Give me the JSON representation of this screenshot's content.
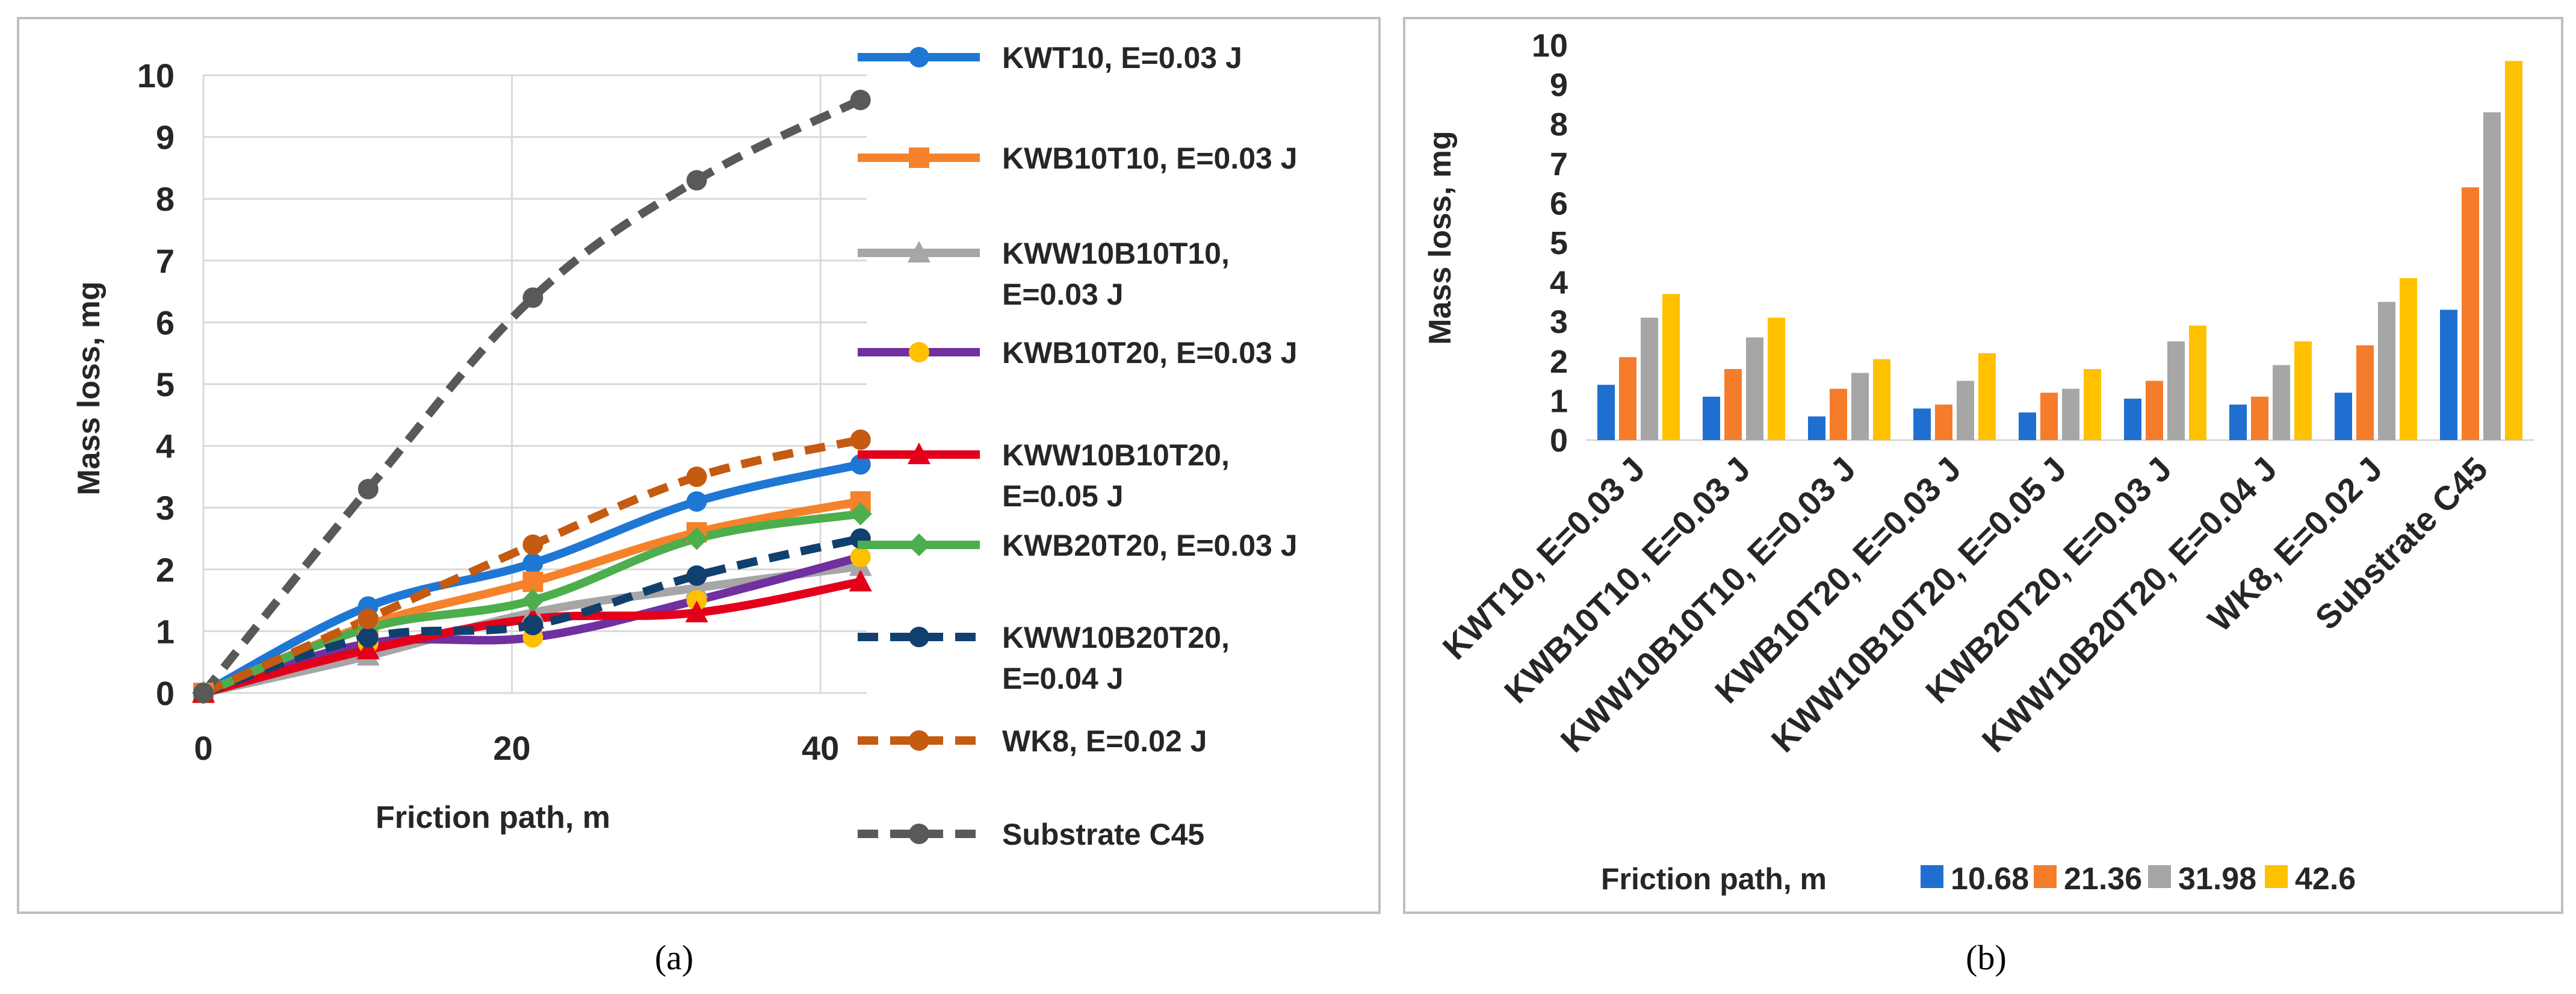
{
  "colors": {
    "KWT10": "#1f77d4",
    "KWB10T10": "#f5822a",
    "KWW10B10T10": "#a6a6a6",
    "KWB10T20": "#7030a0",
    "KWW10B10T20": "#e3001b",
    "KWB20T20": "#4cae4c",
    "KWW10B20T20": "#12406e",
    "WK8": "#c55a11",
    "C45": "#595959",
    "bar10": "#1f6fd1",
    "bar21": "#f57c2b",
    "bar31": "#a6a6a6",
    "bar42": "#ffc000",
    "yellowMarker": "#ffc000",
    "grid": "#d9d9d9",
    "frame": "#bfbfbf"
  },
  "chart_data": [
    {
      "panel": "(a)",
      "type": "line",
      "xlabel": "Friction path, m",
      "ylabel": "Mass loss, mg",
      "xlim": [
        0,
        43
      ],
      "ylim": [
        0,
        10
      ],
      "xticks": [
        "0",
        "20",
        "40"
      ],
      "xtick_values": [
        0,
        20,
        40
      ],
      "yticks": [
        "0",
        "1",
        "2",
        "3",
        "4",
        "5",
        "6",
        "7",
        "8",
        "9",
        "10"
      ],
      "x": [
        0,
        10.68,
        21.36,
        31.98,
        42.6
      ],
      "series": [
        {
          "name": "KWT10, E=0.03 J",
          "legend_lines": [
            "KWT10, E=0.03 J"
          ],
          "color_key": "KWT10",
          "marker": "circle",
          "dash": false,
          "values": [
            0,
            1.4,
            2.1,
            3.1,
            3.7
          ]
        },
        {
          "name": "KWB10T10, E=0.03 J",
          "legend_lines": [
            "KWB10T10, E=0.03 J"
          ],
          "color_key": "KWB10T10",
          "marker": "square",
          "dash": false,
          "values": [
            0,
            1.1,
            1.8,
            2.6,
            3.1
          ]
        },
        {
          "name": "KWW10B10T10, E=0.03 J",
          "legend_lines": [
            "KWW10B10T10,",
            "E=0.03 J"
          ],
          "color_key": "KWW10B10T10",
          "marker": "triangle",
          "dash": false,
          "values": [
            0,
            0.6,
            1.3,
            1.7,
            2.05
          ]
        },
        {
          "name": "KWB10T20, E=0.03 J",
          "legend_lines": [
            "KWB10T20, E=0.03 J"
          ],
          "color_key": "KWB10T20",
          "marker": "circle-yellow",
          "dash": false,
          "values": [
            0,
            0.8,
            0.9,
            1.5,
            2.2
          ]
        },
        {
          "name": "KWW10B10T20, E=0.05 J",
          "legend_lines": [
            "KWW10B10T20,",
            "E=0.05 J"
          ],
          "color_key": "KWW10B10T20",
          "marker": "triangle",
          "dash": false,
          "values": [
            0,
            0.7,
            1.2,
            1.3,
            1.8
          ]
        },
        {
          "name": "KWB20T20, E=0.03 J",
          "legend_lines": [
            "KWB20T20, E=0.03 J"
          ],
          "color_key": "KWB20T20",
          "marker": "diamond",
          "dash": false,
          "values": [
            0,
            1.05,
            1.5,
            2.5,
            2.9
          ]
        },
        {
          "name": "KWW10B20T20, E=0.04 J",
          "legend_lines": [
            "KWW10B20T20,",
            "E=0.04 J"
          ],
          "color_key": "KWW10B20T20",
          "marker": "circle",
          "dash": true,
          "values": [
            0,
            0.9,
            1.1,
            1.9,
            2.5
          ]
        },
        {
          "name": "WK8, E=0.02 J",
          "legend_lines": [
            "WK8, E=0.02 J"
          ],
          "color_key": "WK8",
          "marker": "circle",
          "dash": true,
          "values": [
            0,
            1.2,
            2.4,
            3.5,
            4.1
          ]
        },
        {
          "name": "Substrate C45",
          "legend_lines": [
            "Substrate C45"
          ],
          "color_key": "C45",
          "marker": "circle",
          "dash": true,
          "values": [
            0,
            3.3,
            6.4,
            8.3,
            9.6
          ]
        }
      ],
      "legend_placement": "right"
    },
    {
      "panel": "(b)",
      "type": "bar",
      "ylabel": "Mass loss, mg",
      "ylim": [
        0,
        10
      ],
      "yticks": [
        "0",
        "1",
        "2",
        "3",
        "4",
        "5",
        "6",
        "7",
        "8",
        "9",
        "10"
      ],
      "legend_title": "Friction path, m",
      "categories": [
        "KWT10, E=0.03 J",
        "KWB10T10, E=0.03 J",
        "KWW10B10T10, E=0.03 J",
        "KWB10T20, E=0.03 J",
        "KWW10B10T20, E=0.05 J",
        "KWB20T20, E=0.03 J",
        "KWW10B20T20, E=0.04 J",
        "WK8, E=0.02 J",
        "Substrate C45"
      ],
      "series": [
        {
          "name": "10.68",
          "color_key": "bar10",
          "values": [
            1.4,
            1.1,
            0.6,
            0.8,
            0.7,
            1.05,
            0.9,
            1.2,
            3.3
          ]
        },
        {
          "name": "21.36",
          "color_key": "bar21",
          "values": [
            2.1,
            1.8,
            1.3,
            0.9,
            1.2,
            1.5,
            1.1,
            2.4,
            6.4
          ]
        },
        {
          "name": "31.98",
          "color_key": "bar31",
          "values": [
            3.1,
            2.6,
            1.7,
            1.5,
            1.3,
            2.5,
            1.9,
            3.5,
            8.3
          ]
        },
        {
          "name": "42.6",
          "color_key": "bar42",
          "values": [
            3.7,
            3.1,
            2.05,
            2.2,
            1.8,
            2.9,
            2.5,
            4.1,
            9.6
          ]
        }
      ],
      "legend_placement": "bottom"
    }
  ]
}
